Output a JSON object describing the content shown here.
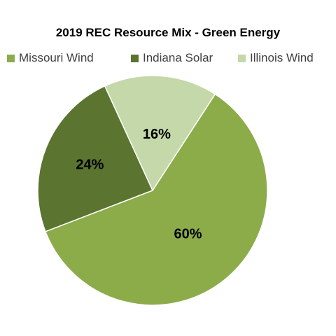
{
  "chart_data": {
    "type": "pie",
    "title": "2019 REC Resource Mix - Green Energy",
    "categories": [
      "Missouri Wind",
      "Indiana Solar",
      "Illinois Wind"
    ],
    "values": [
      60,
      24,
      16
    ],
    "data_labels": [
      "60%",
      "24%",
      "16%"
    ],
    "colors": [
      "#8cac4a",
      "#5b7430",
      "#c5d8a9"
    ],
    "legend_position": "top"
  }
}
